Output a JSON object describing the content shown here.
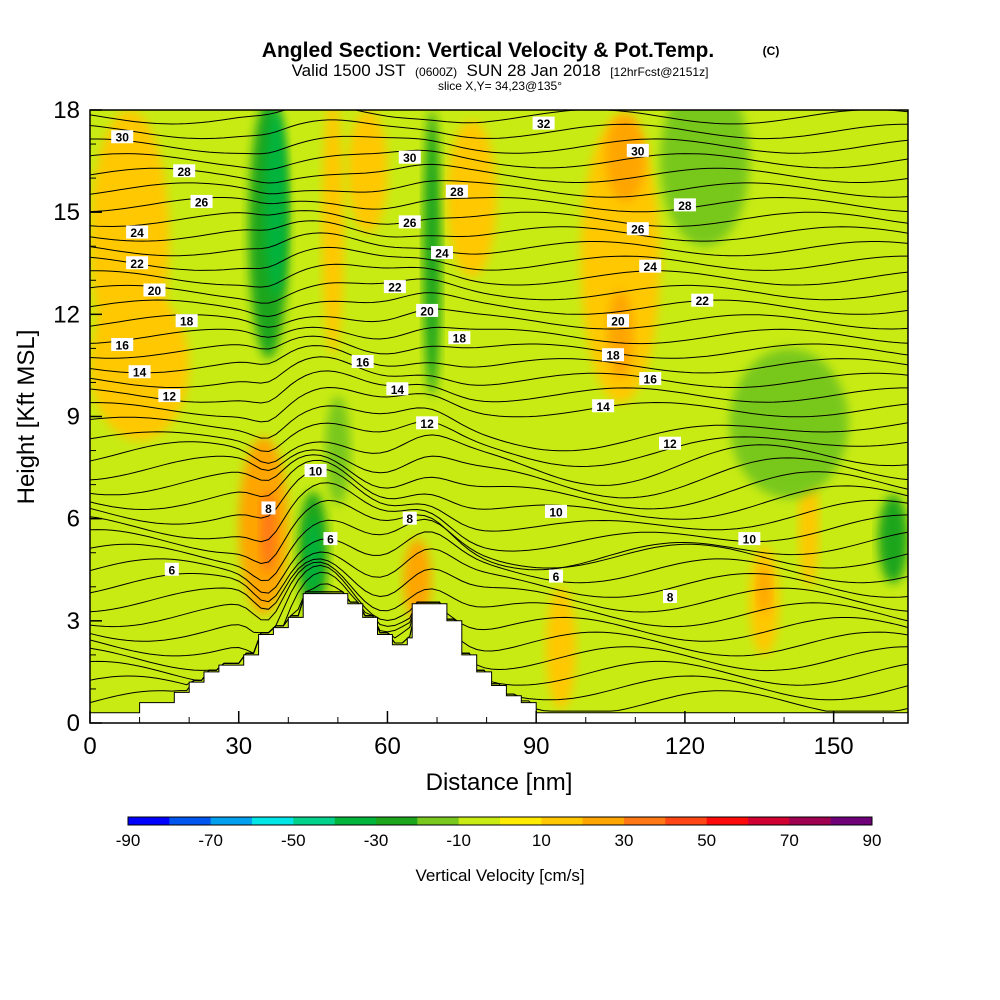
{
  "chart_data": {
    "type": "heatmap",
    "title": "Angled Section: Vertical Velocity & Pot.Temp.",
    "title_copyright": "(C)",
    "subtitle_parts": [
      "Valid 1500 JST",
      "(0600Z)",
      "SUN 28 Jan 2018",
      "[12hrFcst@2151z]"
    ],
    "slice_label": "slice X,Y= 34,23@135°",
    "xlabel": "Distance [nm]",
    "ylabel": "Height [Kft MSL]",
    "xlim": [
      0,
      165
    ],
    "ylim": [
      0,
      18
    ],
    "x_ticks": [
      0,
      30,
      60,
      90,
      120,
      150
    ],
    "y_ticks": [
      0,
      3,
      6,
      9,
      12,
      15,
      18
    ],
    "colorbar": {
      "title": "Vertical Velocity [cm/s]",
      "min": -90,
      "max": 90,
      "step": 10,
      "tick_labels": [
        "-90",
        "-70",
        "-50",
        "-30",
        "-10",
        "10",
        "30",
        "50",
        "70",
        "90"
      ],
      "colors": [
        "#0000ff",
        "#0055ee",
        "#00a0ee",
        "#00e5e5",
        "#00d28c",
        "#00b43c",
        "#1ea51e",
        "#78c81e",
        "#c8eb14",
        "#ffeb00",
        "#ffc800",
        "#ffa500",
        "#ff7814",
        "#ff4614",
        "#ff0a0a",
        "#d20032",
        "#a00050",
        "#6e0078"
      ]
    },
    "terrain_profile": [
      [
        0,
        0.3
      ],
      [
        10,
        0.3
      ],
      [
        10,
        0.6
      ],
      [
        17,
        0.6
      ],
      [
        17,
        0.9
      ],
      [
        20,
        0.9
      ],
      [
        20,
        1.2
      ],
      [
        23,
        1.2
      ],
      [
        23,
        1.5
      ],
      [
        26,
        1.5
      ],
      [
        26,
        1.7
      ],
      [
        31,
        1.7
      ],
      [
        31,
        2.0
      ],
      [
        34,
        2.0
      ],
      [
        34,
        2.6
      ],
      [
        37,
        2.6
      ],
      [
        37,
        2.8
      ],
      [
        40,
        2.8
      ],
      [
        40,
        3.1
      ],
      [
        43,
        3.1
      ],
      [
        43,
        3.8
      ],
      [
        52,
        3.8
      ],
      [
        52,
        3.5
      ],
      [
        55,
        3.5
      ],
      [
        55,
        3.1
      ],
      [
        58,
        3.1
      ],
      [
        58,
        2.6
      ],
      [
        61,
        2.6
      ],
      [
        61,
        2.3
      ],
      [
        64,
        2.3
      ],
      [
        64,
        2.5
      ],
      [
        65,
        2.5
      ],
      [
        65,
        3.5
      ],
      [
        72,
        3.5
      ],
      [
        72,
        3.0
      ],
      [
        75,
        3.0
      ],
      [
        75,
        2.0
      ],
      [
        78,
        2.0
      ],
      [
        78,
        1.5
      ],
      [
        81,
        1.5
      ],
      [
        81,
        1.1
      ],
      [
        84,
        1.1
      ],
      [
        84,
        0.8
      ],
      [
        87,
        0.8
      ],
      [
        87,
        0.6
      ],
      [
        90,
        0.6
      ],
      [
        90,
        0.3
      ],
      [
        165,
        0.3
      ]
    ],
    "velocity_regions": [
      {
        "x": 8,
        "y": 14.2,
        "rx": 8,
        "ry": 3.8,
        "value": 15
      },
      {
        "x": 10,
        "y": 10.5,
        "rx": 10,
        "ry": 2.2,
        "value": 15
      },
      {
        "x": 35,
        "y": 5.8,
        "rx": 5,
        "ry": 2.6,
        "value": 22
      },
      {
        "x": 36,
        "y": 5.6,
        "rx": 1.6,
        "ry": 1.2,
        "value": 38
      },
      {
        "x": 36,
        "y": 14.5,
        "rx": 4,
        "ry": 3.8,
        "value": -22
      },
      {
        "x": 37.5,
        "y": 15.3,
        "rx": 2.2,
        "ry": 2.8,
        "value": -38
      },
      {
        "x": 45,
        "y": 5.0,
        "rx": 3,
        "ry": 1.8,
        "value": -22
      },
      {
        "x": 45,
        "y": 4.9,
        "rx": 1.5,
        "ry": 1.1,
        "value": -38
      },
      {
        "x": 49,
        "y": 14.6,
        "rx": 2.2,
        "ry": 3.8,
        "value": 15
      },
      {
        "x": 50,
        "y": 8.0,
        "rx": 2.5,
        "ry": 1.6,
        "value": -15
      },
      {
        "x": 56,
        "y": 16.2,
        "rx": 4,
        "ry": 1.8,
        "value": 15
      },
      {
        "x": 66,
        "y": 4.2,
        "rx": 2.8,
        "ry": 1.2,
        "value": 22
      },
      {
        "x": 69,
        "y": 13.8,
        "rx": 1.8,
        "ry": 4.2,
        "value": -22
      },
      {
        "x": 77,
        "y": 15.4,
        "rx": 5,
        "ry": 2.3,
        "value": 15
      },
      {
        "x": 95,
        "y": 2.2,
        "rx": 3,
        "ry": 1.8,
        "value": 15
      },
      {
        "x": 107,
        "y": 13.6,
        "rx": 8,
        "ry": 4.2,
        "value": 15
      },
      {
        "x": 108,
        "y": 16.6,
        "rx": 4,
        "ry": 1.3,
        "value": 22
      },
      {
        "x": 107,
        "y": 11.4,
        "rx": 2.5,
        "ry": 1.3,
        "value": 22
      },
      {
        "x": 124,
        "y": 16.5,
        "rx": 9,
        "ry": 2.5,
        "value": -15
      },
      {
        "x": 136,
        "y": 3.6,
        "rx": 3,
        "ry": 1.6,
        "value": 15
      },
      {
        "x": 136,
        "y": 3.9,
        "rx": 1.4,
        "ry": 0.7,
        "value": 22
      },
      {
        "x": 145,
        "y": 5.8,
        "rx": 2,
        "ry": 1.8,
        "value": 15
      },
      {
        "x": 141,
        "y": 8.8,
        "rx": 12,
        "ry": 2.2,
        "value": -15
      },
      {
        "x": 162,
        "y": 5.4,
        "rx": 3,
        "ry": 1.3,
        "value": -22
      }
    ],
    "contour_labels": [
      {
        "text": "30",
        "x": 6.5,
        "y": 17.2
      },
      {
        "text": "28",
        "x": 19,
        "y": 16.2
      },
      {
        "text": "26",
        "x": 22.5,
        "y": 15.3
      },
      {
        "text": "24",
        "x": 9.5,
        "y": 14.4
      },
      {
        "text": "22",
        "x": 9.5,
        "y": 13.5
      },
      {
        "text": "20",
        "x": 13,
        "y": 12.7
      },
      {
        "text": "18",
        "x": 19.5,
        "y": 11.8
      },
      {
        "text": "16",
        "x": 6.5,
        "y": 11.1
      },
      {
        "text": "14",
        "x": 10,
        "y": 10.3
      },
      {
        "text": "12",
        "x": 16,
        "y": 9.6
      },
      {
        "text": "6",
        "x": 16.5,
        "y": 4.5
      },
      {
        "text": "8",
        "x": 36,
        "y": 6.3
      },
      {
        "text": "10",
        "x": 45.5,
        "y": 7.4
      },
      {
        "text": "6",
        "x": 48.5,
        "y": 5.4
      },
      {
        "text": "30",
        "x": 64.5,
        "y": 16.6
      },
      {
        "text": "28",
        "x": 74,
        "y": 15.6
      },
      {
        "text": "26",
        "x": 64.5,
        "y": 14.7
      },
      {
        "text": "24",
        "x": 71,
        "y": 13.8
      },
      {
        "text": "22",
        "x": 61.5,
        "y": 12.8
      },
      {
        "text": "20",
        "x": 68,
        "y": 12.1
      },
      {
        "text": "18",
        "x": 74.5,
        "y": 11.3
      },
      {
        "text": "16",
        "x": 55,
        "y": 10.6
      },
      {
        "text": "14",
        "x": 62,
        "y": 9.8
      },
      {
        "text": "12",
        "x": 68,
        "y": 8.8
      },
      {
        "text": "8",
        "x": 64.5,
        "y": 6.0
      },
      {
        "text": "32",
        "x": 91.5,
        "y": 17.6
      },
      {
        "text": "30",
        "x": 110.5,
        "y": 16.8
      },
      {
        "text": "28",
        "x": 120,
        "y": 15.2
      },
      {
        "text": "26",
        "x": 110.5,
        "y": 14.5
      },
      {
        "text": "24",
        "x": 113,
        "y": 13.4
      },
      {
        "text": "22",
        "x": 123.5,
        "y": 12.4
      },
      {
        "text": "20",
        "x": 106.5,
        "y": 11.8
      },
      {
        "text": "18",
        "x": 105.5,
        "y": 10.8
      },
      {
        "text": "16",
        "x": 113,
        "y": 10.1
      },
      {
        "text": "14",
        "x": 103.5,
        "y": 9.3
      },
      {
        "text": "12",
        "x": 117,
        "y": 8.2
      },
      {
        "text": "10",
        "x": 94,
        "y": 6.2
      },
      {
        "text": "6",
        "x": 94,
        "y": 4.3
      },
      {
        "text": "8",
        "x": 117,
        "y": 3.7
      },
      {
        "text": "10",
        "x": 133,
        "y": 5.4
      }
    ]
  }
}
